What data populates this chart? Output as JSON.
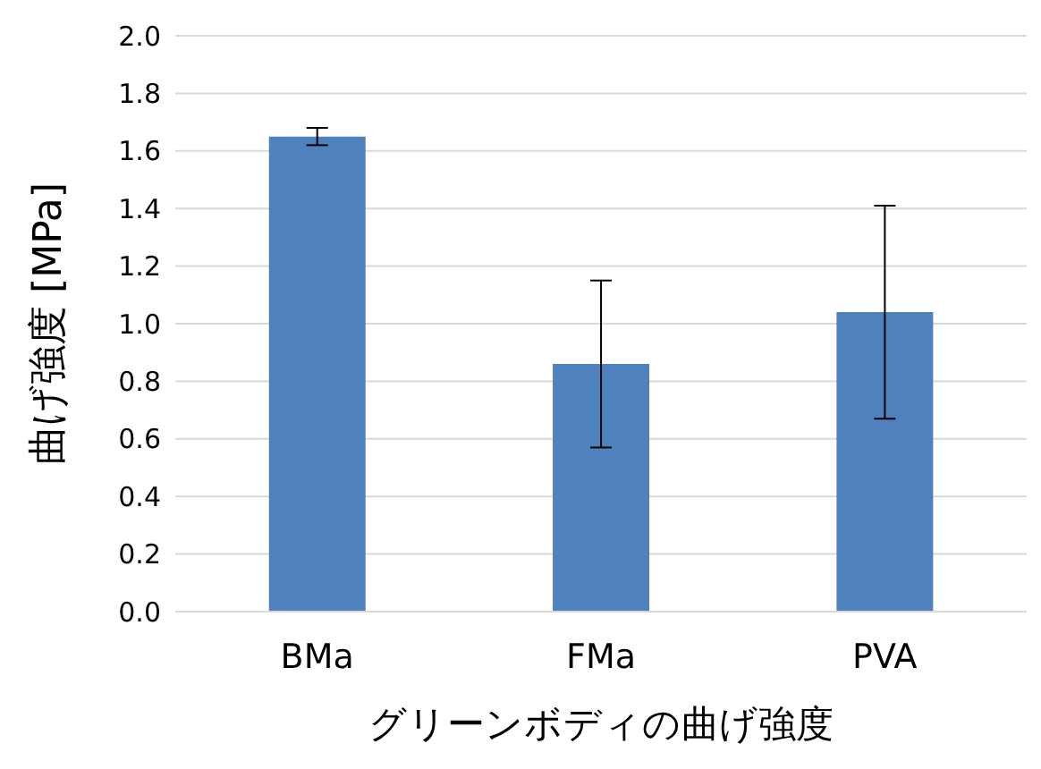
{
  "chart_data": {
    "type": "bar",
    "xlabel": "グリーンボディの曲げ強度",
    "ylabel": "曲げ強度 [MPa]",
    "categories": [
      "BMa",
      "FMa",
      "PVA"
    ],
    "values": [
      1.65,
      0.86,
      1.04
    ],
    "errors": [
      0.03,
      0.29,
      0.37
    ],
    "color": "#4f81bd",
    "ylim": [
      0,
      2
    ],
    "yticks": [
      {
        "value": 0,
        "label": "0.0"
      },
      0.2,
      0.4,
      0.6,
      0.8,
      {
        "value": 1,
        "label": "1.0"
      },
      1.2,
      1.4,
      1.6,
      1.8,
      {
        "value": 2,
        "label": "2.0"
      }
    ],
    "grid": "y"
  }
}
